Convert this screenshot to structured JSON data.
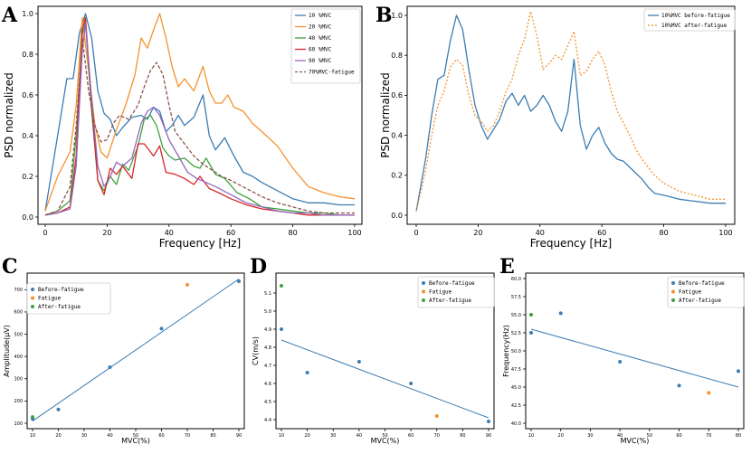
{
  "chart_data": [
    {
      "id": "A",
      "type": "line",
      "panel_label": "A",
      "xlabel": "Frequency [Hz]",
      "ylabel": "PSD normalized",
      "xlim": [
        0,
        100
      ],
      "ylim": [
        0,
        1.0
      ],
      "xticks": [
        0,
        20,
        40,
        60,
        80,
        100
      ],
      "yticks": [
        0.0,
        0.2,
        0.4,
        0.6,
        0.8,
        1.0
      ],
      "legend_position": "top-right",
      "series": [
        {
          "name": "10 %MVC",
          "color": "#3b7db4",
          "dash": false,
          "x": [
            0,
            4,
            7,
            9,
            11,
            13,
            15,
            17,
            19,
            21,
            23,
            25,
            28,
            31,
            33,
            35,
            37,
            39,
            41,
            43,
            45,
            48,
            51,
            53,
            55,
            58,
            61,
            64,
            67,
            70,
            75,
            80,
            85,
            90,
            95,
            100
          ],
          "y": [
            0.03,
            0.4,
            0.68,
            0.68,
            0.9,
            1.0,
            0.88,
            0.62,
            0.51,
            0.48,
            0.4,
            0.44,
            0.49,
            0.5,
            0.48,
            0.54,
            0.52,
            0.42,
            0.45,
            0.5,
            0.45,
            0.49,
            0.6,
            0.4,
            0.33,
            0.39,
            0.3,
            0.22,
            0.2,
            0.17,
            0.13,
            0.09,
            0.07,
            0.07,
            0.06,
            0.06
          ]
        },
        {
          "name": "20 %MVC",
          "color": "#f5922f",
          "dash": false,
          "x": [
            0,
            4,
            8,
            10,
            12,
            14,
            16,
            18,
            20,
            23,
            26,
            29,
            31,
            33,
            35,
            37,
            39,
            41,
            43,
            45,
            48,
            51,
            53,
            55,
            57,
            59,
            61,
            64,
            67,
            70,
            75,
            80,
            85,
            90,
            95,
            100
          ],
          "y": [
            0.03,
            0.2,
            0.32,
            0.55,
            0.98,
            0.72,
            0.46,
            0.32,
            0.29,
            0.43,
            0.55,
            0.7,
            0.88,
            0.83,
            0.92,
            1.0,
            0.88,
            0.74,
            0.64,
            0.68,
            0.62,
            0.74,
            0.62,
            0.56,
            0.56,
            0.6,
            0.54,
            0.52,
            0.46,
            0.42,
            0.35,
            0.24,
            0.15,
            0.12,
            0.1,
            0.09
          ]
        },
        {
          "name": "40 %MVC",
          "color": "#3fa23f",
          "dash": false,
          "x": [
            0,
            4,
            8,
            10,
            12,
            13,
            15,
            17,
            19,
            21,
            23,
            25,
            27,
            30,
            32,
            34,
            36,
            38,
            40,
            42,
            45,
            48,
            50,
            52,
            55,
            58,
            62,
            66,
            70,
            75,
            80,
            85,
            90,
            95,
            100
          ],
          "y": [
            0.01,
            0.03,
            0.08,
            0.4,
            0.9,
            0.96,
            0.52,
            0.18,
            0.13,
            0.2,
            0.16,
            0.26,
            0.23,
            0.35,
            0.48,
            0.5,
            0.45,
            0.34,
            0.3,
            0.28,
            0.29,
            0.25,
            0.24,
            0.29,
            0.21,
            0.19,
            0.12,
            0.09,
            0.05,
            0.04,
            0.03,
            0.02,
            0.02,
            0.01,
            0.01
          ]
        },
        {
          "name": "60 %MVC",
          "color": "#d62728",
          "dash": false,
          "x": [
            0,
            4,
            8,
            10,
            12,
            13,
            15,
            17,
            19,
            21,
            23,
            25,
            28,
            30,
            32,
            35,
            37,
            39,
            42,
            45,
            48,
            50,
            53,
            56,
            60,
            65,
            70,
            75,
            80,
            85,
            90,
            95,
            100
          ],
          "y": [
            0.01,
            0.02,
            0.05,
            0.3,
            0.92,
            0.98,
            0.55,
            0.18,
            0.11,
            0.24,
            0.21,
            0.25,
            0.19,
            0.36,
            0.36,
            0.3,
            0.35,
            0.22,
            0.21,
            0.19,
            0.16,
            0.2,
            0.14,
            0.12,
            0.09,
            0.06,
            0.04,
            0.03,
            0.02,
            0.01,
            0.01,
            0.01,
            0.01
          ]
        },
        {
          "name": "90 %MVC",
          "color": "#9467bd",
          "dash": false,
          "x": [
            0,
            4,
            8,
            10,
            12,
            13,
            15,
            17,
            19,
            21,
            23,
            25,
            28,
            31,
            33,
            35,
            37,
            40,
            43,
            46,
            49,
            52,
            55,
            60,
            65,
            70,
            75,
            80,
            85,
            90,
            95,
            100
          ],
          "y": [
            0.01,
            0.02,
            0.04,
            0.25,
            0.82,
            0.95,
            0.58,
            0.25,
            0.15,
            0.2,
            0.27,
            0.25,
            0.29,
            0.46,
            0.52,
            0.54,
            0.5,
            0.38,
            0.3,
            0.22,
            0.19,
            0.17,
            0.15,
            0.11,
            0.07,
            0.05,
            0.03,
            0.02,
            0.02,
            0.01,
            0.01,
            0.01
          ]
        },
        {
          "name": "70%MVC-fatigue",
          "color": "#8c564b",
          "dash": true,
          "x": [
            0,
            4,
            8,
            10,
            12,
            14,
            16,
            18,
            20,
            22,
            24,
            27,
            30,
            32,
            34,
            36,
            38,
            40,
            42,
            45,
            48,
            51,
            54,
            57,
            60,
            65,
            70,
            75,
            80,
            85,
            90,
            95,
            100
          ],
          "y": [
            0.01,
            0.03,
            0.15,
            0.45,
            0.88,
            0.62,
            0.45,
            0.37,
            0.38,
            0.46,
            0.5,
            0.48,
            0.55,
            0.64,
            0.72,
            0.76,
            0.7,
            0.55,
            0.42,
            0.36,
            0.3,
            0.26,
            0.23,
            0.2,
            0.18,
            0.14,
            0.1,
            0.07,
            0.05,
            0.03,
            0.02,
            0.02,
            0.02
          ]
        }
      ]
    },
    {
      "id": "B",
      "type": "line",
      "panel_label": "B",
      "xlabel": "Frequency [Hz]",
      "ylabel": "PSD normalized",
      "xlim": [
        0,
        100
      ],
      "ylim": [
        0,
        1.0
      ],
      "xticks": [
        0,
        20,
        40,
        60,
        80,
        100
      ],
      "yticks": [
        0.0,
        0.2,
        0.4,
        0.6,
        0.8,
        1.0
      ],
      "legend_position": "top-right",
      "series": [
        {
          "name": "10%MVC before-fatigue",
          "color": "#3b7db4",
          "dash": false,
          "x": [
            0,
            3,
            5,
            7,
            9,
            11,
            13,
            15,
            17,
            19,
            21,
            23,
            25,
            27,
            29,
            31,
            33,
            35,
            37,
            39,
            41,
            43,
            45,
            47,
            49,
            51,
            53,
            55,
            57,
            59,
            61,
            63,
            65,
            67,
            69,
            71,
            73,
            75,
            77,
            80,
            85,
            90,
            95,
            100
          ],
          "y": [
            0.02,
            0.28,
            0.5,
            0.68,
            0.7,
            0.87,
            1.0,
            0.93,
            0.73,
            0.55,
            0.45,
            0.38,
            0.43,
            0.48,
            0.57,
            0.61,
            0.55,
            0.6,
            0.52,
            0.55,
            0.6,
            0.55,
            0.47,
            0.42,
            0.52,
            0.78,
            0.45,
            0.33,
            0.4,
            0.44,
            0.36,
            0.31,
            0.28,
            0.27,
            0.24,
            0.21,
            0.18,
            0.14,
            0.11,
            0.1,
            0.08,
            0.07,
            0.06,
            0.06
          ]
        },
        {
          "name": "10%MVC after-fatigue",
          "color": "#f5922f",
          "dash": true,
          "x": [
            0,
            3,
            5,
            7,
            9,
            11,
            13,
            15,
            17,
            19,
            21,
            23,
            25,
            27,
            29,
            31,
            33,
            35,
            37,
            39,
            41,
            43,
            45,
            47,
            49,
            51,
            53,
            55,
            57,
            59,
            61,
            63,
            65,
            67,
            69,
            71,
            73,
            75,
            77,
            80,
            85,
            90,
            95,
            100
          ],
          "y": [
            0.02,
            0.22,
            0.4,
            0.55,
            0.62,
            0.74,
            0.78,
            0.75,
            0.6,
            0.5,
            0.47,
            0.42,
            0.45,
            0.52,
            0.62,
            0.68,
            0.8,
            0.88,
            1.02,
            0.9,
            0.73,
            0.76,
            0.8,
            0.78,
            0.85,
            0.92,
            0.7,
            0.72,
            0.78,
            0.82,
            0.75,
            0.62,
            0.52,
            0.46,
            0.4,
            0.33,
            0.28,
            0.24,
            0.2,
            0.16,
            0.12,
            0.1,
            0.08,
            0.08
          ]
        }
      ]
    },
    {
      "id": "C",
      "type": "scatter",
      "panel_label": "C",
      "xlabel": "MVC(%)",
      "ylabel": "Amplitude(μV)",
      "xlim": [
        10,
        90
      ],
      "ylim": [
        100,
        750
      ],
      "xticks": [
        10,
        20,
        30,
        40,
        50,
        60,
        70,
        80,
        90
      ],
      "yticks": [
        100,
        200,
        300,
        400,
        500,
        600,
        700
      ],
      "legend_position": "top-left",
      "series": [
        {
          "name": "Before-fatigue",
          "color": "#3b7db4",
          "x": [
            10,
            20,
            40,
            60,
            90
          ],
          "y": [
            120,
            162,
            352,
            525,
            738
          ]
        },
        {
          "name": "Fatigue",
          "color": "#f5922f",
          "x": [
            70
          ],
          "y": [
            722
          ]
        },
        {
          "name": "After-fatigue",
          "color": "#3fa23f",
          "x": [
            10
          ],
          "y": [
            128
          ]
        }
      ],
      "fit_line": {
        "color": "#3b7db4",
        "x": [
          10,
          90
        ],
        "y": [
          110,
          748
        ]
      }
    },
    {
      "id": "D",
      "type": "scatter",
      "panel_label": "D",
      "xlabel": "MVC(%)",
      "ylabel": "CV(m/s)",
      "xlim": [
        10,
        90
      ],
      "ylim": [
        4.38,
        5.18
      ],
      "xticks": [
        10,
        20,
        30,
        40,
        50,
        60,
        70,
        80,
        90
      ],
      "yticks": [
        4.4,
        4.5,
        4.6,
        4.7,
        4.8,
        4.9,
        5.0,
        5.1
      ],
      "legend_position": "top-right",
      "series": [
        {
          "name": "Before-fatigue",
          "color": "#3b7db4",
          "x": [
            10,
            20,
            40,
            60,
            90
          ],
          "y": [
            4.9,
            4.66,
            4.72,
            4.6,
            4.39
          ]
        },
        {
          "name": "Fatigue",
          "color": "#f5922f",
          "x": [
            70
          ],
          "y": [
            4.42
          ]
        },
        {
          "name": "After-fatigue",
          "color": "#3fa23f",
          "x": [
            10
          ],
          "y": [
            5.14
          ]
        }
      ],
      "fit_line": {
        "color": "#3b7db4",
        "x": [
          10,
          90
        ],
        "y": [
          4.84,
          4.41
        ]
      }
    },
    {
      "id": "E",
      "type": "scatter",
      "panel_label": "E",
      "xlabel": "MVC(%)",
      "ylabel": "Frequency(Hz)",
      "xlim": [
        10,
        80
      ],
      "ylim": [
        40.0,
        60.0
      ],
      "xticks": [
        10,
        20,
        30,
        40,
        50,
        60,
        70,
        80
      ],
      "yticks": [
        40.0,
        42.5,
        45.0,
        47.5,
        50.0,
        52.5,
        55.0,
        57.5,
        60.0
      ],
      "legend_position": "top-right",
      "series": [
        {
          "name": "Before-fatigue",
          "color": "#3b7db4",
          "x": [
            10,
            20,
            40,
            60,
            80
          ],
          "y": [
            52.5,
            55.2,
            48.5,
            45.2,
            47.2
          ]
        },
        {
          "name": "Fatigue",
          "color": "#f5922f",
          "x": [
            70
          ],
          "y": [
            44.2
          ]
        },
        {
          "name": "After-fatigue",
          "color": "#3fa23f",
          "x": [
            10
          ],
          "y": [
            55.0
          ]
        }
      ],
      "fit_line": {
        "color": "#3b7db4",
        "x": [
          10,
          80
        ],
        "y": [
          53.0,
          45.0
        ]
      }
    }
  ]
}
